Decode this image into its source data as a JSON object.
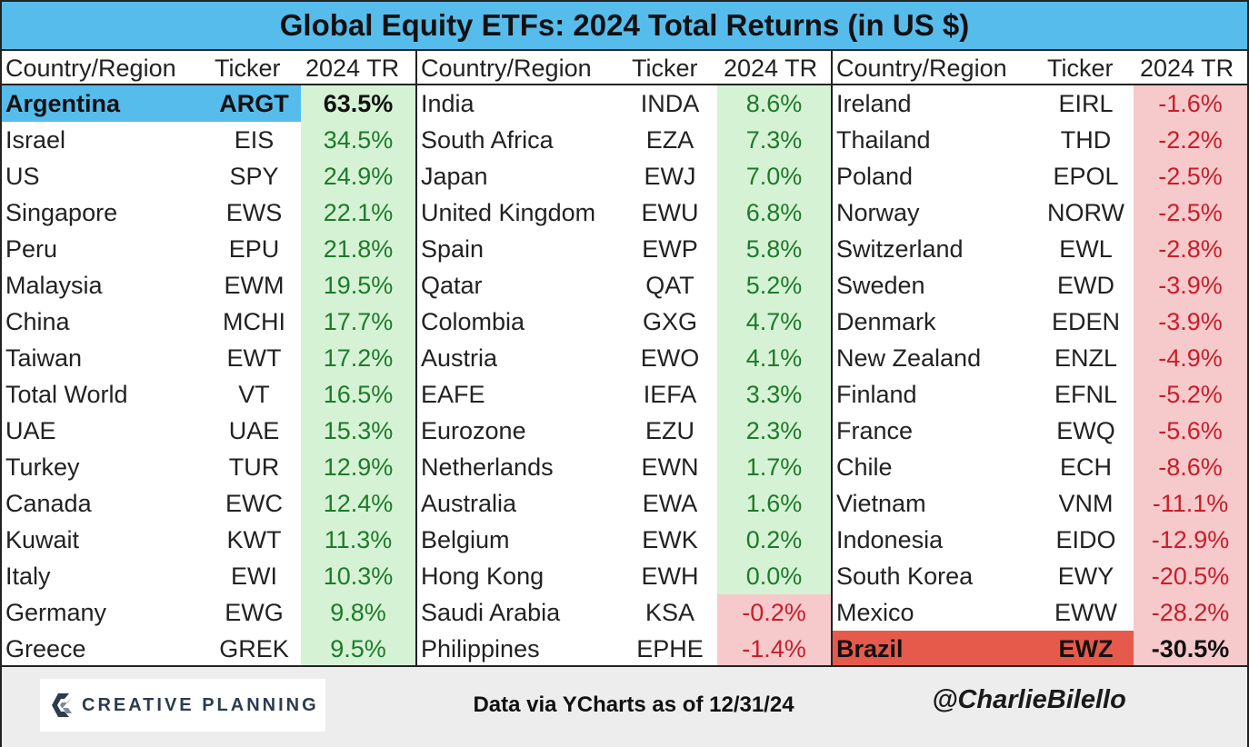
{
  "chart_data": {
    "type": "table",
    "title": "Global Equity ETFs: 2024 Total Returns (in US $)",
    "columns": [
      "Country/Region",
      "Ticker",
      "2024 TR"
    ],
    "panels": [
      {
        "rows": [
          {
            "country": "Argentina",
            "ticker": "ARGT",
            "tr": "63.5%",
            "value": 63.5
          },
          {
            "country": "Israel",
            "ticker": "EIS",
            "tr": "34.5%",
            "value": 34.5
          },
          {
            "country": "US",
            "ticker": "SPY",
            "tr": "24.9%",
            "value": 24.9
          },
          {
            "country": "Singapore",
            "ticker": "EWS",
            "tr": "22.1%",
            "value": 22.1
          },
          {
            "country": "Peru",
            "ticker": "EPU",
            "tr": "21.8%",
            "value": 21.8
          },
          {
            "country": "Malaysia",
            "ticker": "EWM",
            "tr": "19.5%",
            "value": 19.5
          },
          {
            "country": "China",
            "ticker": "MCHI",
            "tr": "17.7%",
            "value": 17.7
          },
          {
            "country": "Taiwan",
            "ticker": "EWT",
            "tr": "17.2%",
            "value": 17.2
          },
          {
            "country": "Total World",
            "ticker": "VT",
            "tr": "16.5%",
            "value": 16.5
          },
          {
            "country": "UAE",
            "ticker": "UAE",
            "tr": "15.3%",
            "value": 15.3
          },
          {
            "country": "Turkey",
            "ticker": "TUR",
            "tr": "12.9%",
            "value": 12.9
          },
          {
            "country": "Canada",
            "ticker": "EWC",
            "tr": "12.4%",
            "value": 12.4
          },
          {
            "country": "Kuwait",
            "ticker": "KWT",
            "tr": "11.3%",
            "value": 11.3
          },
          {
            "country": "Italy",
            "ticker": "EWI",
            "tr": "10.3%",
            "value": 10.3
          },
          {
            "country": "Germany",
            "ticker": "EWG",
            "tr": "9.8%",
            "value": 9.8
          },
          {
            "country": "Greece",
            "ticker": "GREK",
            "tr": "9.5%",
            "value": 9.5
          }
        ]
      },
      {
        "rows": [
          {
            "country": "India",
            "ticker": "INDA",
            "tr": "8.6%",
            "value": 8.6
          },
          {
            "country": "South Africa",
            "ticker": "EZA",
            "tr": "7.3%",
            "value": 7.3
          },
          {
            "country": "Japan",
            "ticker": "EWJ",
            "tr": "7.0%",
            "value": 7.0
          },
          {
            "country": "United Kingdom",
            "ticker": "EWU",
            "tr": "6.8%",
            "value": 6.8
          },
          {
            "country": "Spain",
            "ticker": "EWP",
            "tr": "5.8%",
            "value": 5.8
          },
          {
            "country": "Qatar",
            "ticker": "QAT",
            "tr": "5.2%",
            "value": 5.2
          },
          {
            "country": "Colombia",
            "ticker": "GXG",
            "tr": "4.7%",
            "value": 4.7
          },
          {
            "country": "Austria",
            "ticker": "EWO",
            "tr": "4.1%",
            "value": 4.1
          },
          {
            "country": "EAFE",
            "ticker": "IEFA",
            "tr": "3.3%",
            "value": 3.3
          },
          {
            "country": "Eurozone",
            "ticker": "EZU",
            "tr": "2.3%",
            "value": 2.3
          },
          {
            "country": "Netherlands",
            "ticker": "EWN",
            "tr": "1.7%",
            "value": 1.7
          },
          {
            "country": "Australia",
            "ticker": "EWA",
            "tr": "1.6%",
            "value": 1.6
          },
          {
            "country": "Belgium",
            "ticker": "EWK",
            "tr": "0.2%",
            "value": 0.2
          },
          {
            "country": "Hong Kong",
            "ticker": "EWH",
            "tr": "0.0%",
            "value": 0.0
          },
          {
            "country": "Saudi Arabia",
            "ticker": "KSA",
            "tr": "-0.2%",
            "value": -0.2
          },
          {
            "country": "Philippines",
            "ticker": "EPHE",
            "tr": "-1.4%",
            "value": -1.4
          }
        ]
      },
      {
        "rows": [
          {
            "country": "Ireland",
            "ticker": "EIRL",
            "tr": "-1.6%",
            "value": -1.6
          },
          {
            "country": "Thailand",
            "ticker": "THD",
            "tr": "-2.2%",
            "value": -2.2
          },
          {
            "country": "Poland",
            "ticker": "EPOL",
            "tr": "-2.5%",
            "value": -2.5
          },
          {
            "country": "Norway",
            "ticker": "NORW",
            "tr": "-2.5%",
            "value": -2.5
          },
          {
            "country": "Switzerland",
            "ticker": "EWL",
            "tr": "-2.8%",
            "value": -2.8
          },
          {
            "country": "Sweden",
            "ticker": "EWD",
            "tr": "-3.9%",
            "value": -3.9
          },
          {
            "country": "Denmark",
            "ticker": "EDEN",
            "tr": "-3.9%",
            "value": -3.9
          },
          {
            "country": "New Zealand",
            "ticker": "ENZL",
            "tr": "-4.9%",
            "value": -4.9
          },
          {
            "country": "Finland",
            "ticker": "EFNL",
            "tr": "-5.2%",
            "value": -5.2
          },
          {
            "country": "France",
            "ticker": "EWQ",
            "tr": "-5.6%",
            "value": -5.6
          },
          {
            "country": "Chile",
            "ticker": "ECH",
            "tr": "-8.6%",
            "value": -8.6
          },
          {
            "country": "Vietnam",
            "ticker": "VNM",
            "tr": "-11.1%",
            "value": -11.1
          },
          {
            "country": "Indonesia",
            "ticker": "EIDO",
            "tr": "-12.9%",
            "value": -12.9
          },
          {
            "country": "South Korea",
            "ticker": "EWY",
            "tr": "-20.5%",
            "value": -20.5
          },
          {
            "country": "Mexico",
            "ticker": "EWW",
            "tr": "-28.2%",
            "value": -28.2
          },
          {
            "country": "Brazil",
            "ticker": "EWZ",
            "tr": "-30.5%",
            "value": -30.5
          }
        ]
      }
    ],
    "highlights": {
      "best": "Argentina",
      "worst": "Brazil"
    }
  },
  "footer": {
    "logo_text": "CREATIVE PLANNING",
    "source": "Data via YCharts as of 12/31/24",
    "handle": "@CharlieBilello"
  },
  "colors": {
    "title_bg": "#56bcec",
    "positive_fill": "#d5f2d5",
    "negative_fill": "#f6c9cb",
    "positive_text": "#1f7a2a",
    "negative_text": "#c81e2a",
    "best_highlight": "#56bcec",
    "worst_highlight": "#e65a4c"
  }
}
